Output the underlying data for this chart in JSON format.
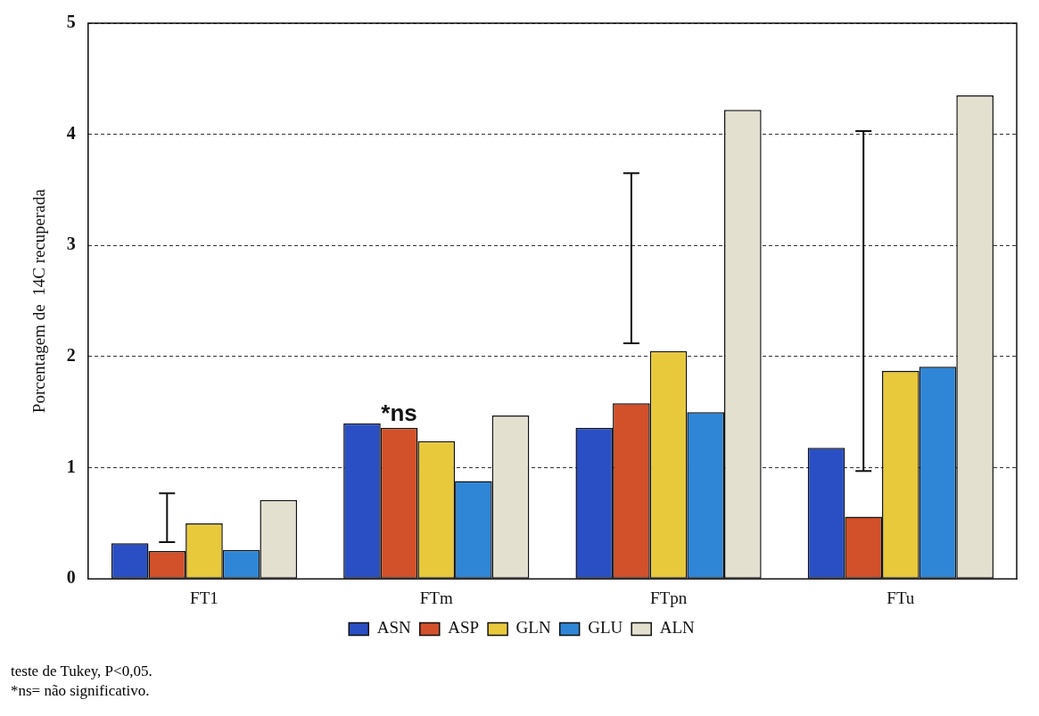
{
  "chart_data": {
    "type": "bar",
    "ylabel": "Porcentagem de  14C recuperada",
    "categories": [
      "FT1",
      "FTm",
      "FTpn",
      "FTu"
    ],
    "series": [
      {
        "name": "ASN",
        "color": "#2a4fc4",
        "values": [
          0.32,
          1.4,
          1.36,
          1.18
        ]
      },
      {
        "name": "ASP",
        "color": "#d2502a",
        "values": [
          0.25,
          1.36,
          1.58,
          0.56
        ],
        "errors": [
          [
            0.33,
            0.77
          ],
          null,
          [
            2.12,
            3.65
          ],
          [
            0.97,
            4.03
          ]
        ]
      },
      {
        "name": "GLN",
        "color": "#e8c93c",
        "values": [
          0.5,
          1.24,
          2.05,
          1.87
        ]
      },
      {
        "name": "GLU",
        "color": "#2f86d6",
        "values": [
          0.26,
          0.88,
          1.5,
          1.91
        ]
      },
      {
        "name": "ALN",
        "color": "#e4e0d0",
        "values": [
          0.71,
          1.47,
          4.22,
          4.35
        ]
      }
    ],
    "ylim": [
      0,
      5
    ],
    "yticks": [
      0,
      1,
      2,
      3,
      4,
      5
    ],
    "grid": "y",
    "line_style": "dashed",
    "legend": "bottom",
    "annotations": [
      "*ns",
      "teste de Tukey, P<0,05.",
      "*ns= não significativo."
    ]
  }
}
